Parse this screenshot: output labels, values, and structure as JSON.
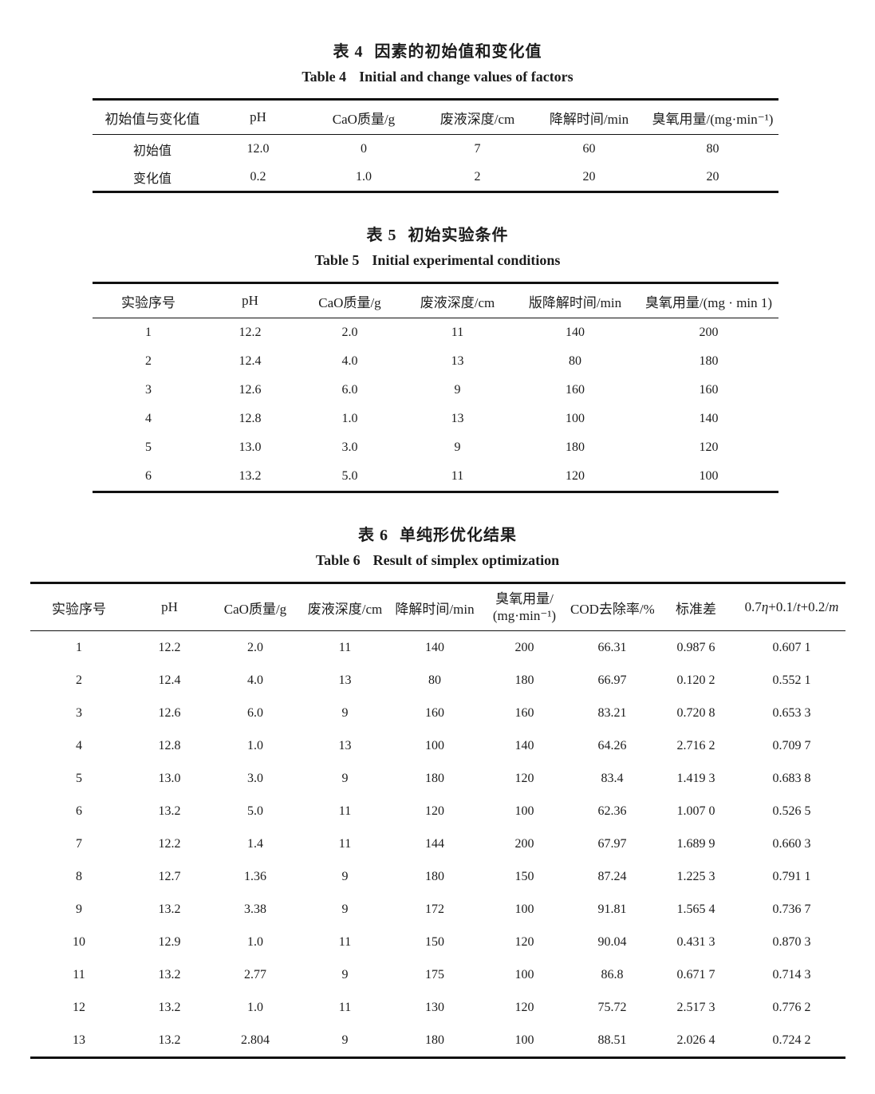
{
  "table4": {
    "title_cn_label": "表 4",
    "title_cn_text": "因素的初始值和变化值",
    "title_en_label": "Table 4",
    "title_en_text": "Initial and change values of factors",
    "headers": [
      "初始值与变化值",
      "pH",
      "CaO质量/g",
      "废液深度/cm",
      "降解时间/min",
      "臭氧用量/(mg·min⁻¹)"
    ],
    "rows": [
      [
        "初始值",
        "12.0",
        "0",
        "7",
        "60",
        "80"
      ],
      [
        "变化值",
        "0.2",
        "1.0",
        "2",
        "20",
        "20"
      ]
    ]
  },
  "table5": {
    "title_cn_label": "表 5",
    "title_cn_text": "初始实验条件",
    "title_en_label": "Table 5",
    "title_en_text": "Initial experimental conditions",
    "headers": [
      "实验序号",
      "pH",
      "CaO质量/g",
      "废液深度/cm",
      "版降解时间/min",
      "臭氧用量/(mg · min 1)"
    ],
    "rows": [
      [
        "1",
        "12.2",
        "2.0",
        "11",
        "140",
        "200"
      ],
      [
        "2",
        "12.4",
        "4.0",
        "13",
        "80",
        "180"
      ],
      [
        "3",
        "12.6",
        "6.0",
        "9",
        "160",
        "160"
      ],
      [
        "4",
        "12.8",
        "1.0",
        "13",
        "100",
        "140"
      ],
      [
        "5",
        "13.0",
        "3.0",
        "9",
        "180",
        "120"
      ],
      [
        "6",
        "13.2",
        "5.0",
        "11",
        "120",
        "100"
      ]
    ]
  },
  "table6": {
    "title_cn_label": "表 6",
    "title_cn_text": "单纯形优化结果",
    "title_en_label": "Table 6",
    "title_en_text": "Result of simplex optimization",
    "headers_lead": [
      "实验序号",
      "pH",
      "CaO质量/g",
      "废液深度/cm",
      "降解时间/min"
    ],
    "ozone_line1": "臭氧用量/",
    "ozone_line2": "(mg·min⁻¹)",
    "header_cod": "COD去除率/%",
    "header_std": "标准差",
    "formula_parts": [
      "0.7",
      "η",
      "+0.1/",
      "t",
      "+0.2/",
      "m"
    ],
    "rows": [
      [
        "1",
        "12.2",
        "2.0",
        "11",
        "140",
        "200",
        "66.31",
        "0.987 6",
        "0.607 1"
      ],
      [
        "2",
        "12.4",
        "4.0",
        "13",
        "80",
        "180",
        "66.97",
        "0.120 2",
        "0.552 1"
      ],
      [
        "3",
        "12.6",
        "6.0",
        "9",
        "160",
        "160",
        "83.21",
        "0.720 8",
        "0.653 3"
      ],
      [
        "4",
        "12.8",
        "1.0",
        "13",
        "100",
        "140",
        "64.26",
        "2.716 2",
        "0.709 7"
      ],
      [
        "5",
        "13.0",
        "3.0",
        "9",
        "180",
        "120",
        "83.4",
        "1.419 3",
        "0.683 8"
      ],
      [
        "6",
        "13.2",
        "5.0",
        "11",
        "120",
        "100",
        "62.36",
        "1.007 0",
        "0.526 5"
      ],
      [
        "7",
        "12.2",
        "1.4",
        "11",
        "144",
        "200",
        "67.97",
        "1.689 9",
        "0.660 3"
      ],
      [
        "8",
        "12.7",
        "1.36",
        "9",
        "180",
        "150",
        "87.24",
        "1.225 3",
        "0.791 1"
      ],
      [
        "9",
        "13.2",
        "3.38",
        "9",
        "172",
        "100",
        "91.81",
        "1.565 4",
        "0.736 7"
      ],
      [
        "10",
        "12.9",
        "1.0",
        "11",
        "150",
        "120",
        "90.04",
        "0.431 3",
        "0.870 3"
      ],
      [
        "11",
        "13.2",
        "2.77",
        "9",
        "175",
        "100",
        "86.8",
        "0.671 7",
        "0.714 3"
      ],
      [
        "12",
        "13.2",
        "1.0",
        "11",
        "130",
        "120",
        "75.72",
        "2.517 3",
        "0.776 2"
      ],
      [
        "13",
        "13.2",
        "2.804",
        "9",
        "180",
        "100",
        "88.51",
        "2.026 4",
        "0.724 2"
      ]
    ]
  }
}
